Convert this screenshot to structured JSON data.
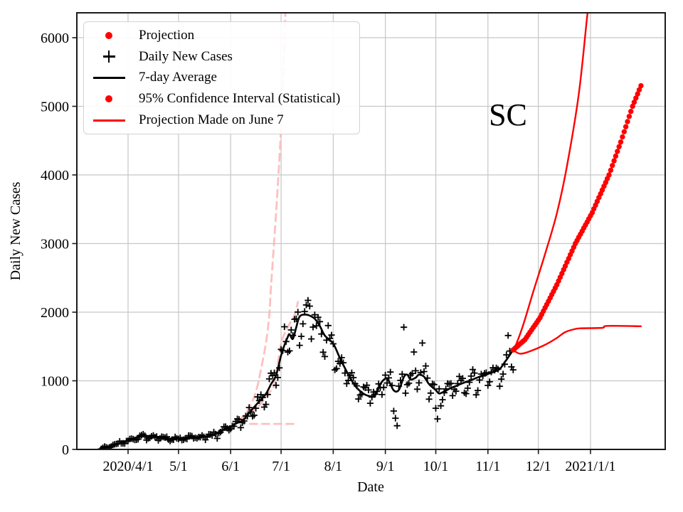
{
  "figure": {
    "annotation": "SC",
    "x_axis_label": "Date",
    "y_axis_label": "Daily New Cases"
  },
  "legend": {
    "items": [
      {
        "label": "Projection",
        "marker": "dot",
        "color": "#ff0000"
      },
      {
        "label": "Daily New Cases",
        "marker": "plus",
        "color": "#000000"
      },
      {
        "label": "7-day Average",
        "marker": "line",
        "color": "#000000"
      },
      {
        "label": "95% Confidence Interval (Statistical)",
        "marker": "dot",
        "color": "#ff0000"
      },
      {
        "label": "Projection Made on June 7",
        "marker": "line",
        "color": "#ff0000"
      }
    ]
  },
  "colors": {
    "red": "#ff0000",
    "black": "#000000",
    "faded_old_projection": "#ffb4b4",
    "grid": "#c6c6c6",
    "spine": "#1a1a1a"
  },
  "chart_data": {
    "type": "line",
    "title": "SC",
    "xlabel": "Date",
    "ylabel": "Daily New Cases",
    "ylim": [
      0,
      6360
    ],
    "grid": true,
    "legend_position": "upper left",
    "x_ticks": [
      {
        "label": "2020/4/1",
        "date": "2020-04-01"
      },
      {
        "label": "5/1",
        "date": "2020-05-01"
      },
      {
        "label": "6/1",
        "date": "2020-06-01"
      },
      {
        "label": "7/1",
        "date": "2020-07-01"
      },
      {
        "label": "8/1",
        "date": "2020-08-01"
      },
      {
        "label": "9/1",
        "date": "2020-09-01"
      },
      {
        "label": "10/1",
        "date": "2020-10-01"
      },
      {
        "label": "11/1",
        "date": "2020-11-01"
      },
      {
        "label": "12/1",
        "date": "2020-12-01"
      },
      {
        "label": "2021/1/1",
        "date": "2021-01-01"
      }
    ],
    "y_ticks": [
      0,
      1000,
      2000,
      3000,
      4000,
      5000,
      6000
    ],
    "series": [
      {
        "name": "7-day Average",
        "type": "line",
        "color": "#000000",
        "width": 2.6,
        "points": [
          [
            "2020-03-17",
            15
          ],
          [
            "2020-03-20",
            35
          ],
          [
            "2020-03-24",
            60
          ],
          [
            "2020-03-28",
            95
          ],
          [
            "2020-04-01",
            130
          ],
          [
            "2020-04-05",
            165
          ],
          [
            "2020-04-09",
            190
          ],
          [
            "2020-04-13",
            195
          ],
          [
            "2020-04-17",
            185
          ],
          [
            "2020-04-21",
            165
          ],
          [
            "2020-04-25",
            158
          ],
          [
            "2020-05-01",
            160
          ],
          [
            "2020-05-05",
            170
          ],
          [
            "2020-05-09",
            175
          ],
          [
            "2020-05-13",
            180
          ],
          [
            "2020-05-17",
            190
          ],
          [
            "2020-05-21",
            210
          ],
          [
            "2020-05-25",
            250
          ],
          [
            "2020-05-28",
            290
          ],
          [
            "2020-06-01",
            330
          ],
          [
            "2020-06-04",
            375
          ],
          [
            "2020-06-08",
            420
          ],
          [
            "2020-06-11",
            500
          ],
          [
            "2020-06-14",
            590
          ],
          [
            "2020-06-18",
            700
          ],
          [
            "2020-06-22",
            810
          ],
          [
            "2020-06-25",
            950
          ],
          [
            "2020-06-28",
            1080
          ],
          [
            "2020-07-01",
            1370
          ],
          [
            "2020-07-03",
            1520
          ],
          [
            "2020-07-05",
            1640
          ],
          [
            "2020-07-06",
            1680
          ],
          [
            "2020-07-08",
            1610
          ],
          [
            "2020-07-10",
            1780
          ],
          [
            "2020-07-12",
            1935
          ],
          [
            "2020-07-15",
            1965
          ],
          [
            "2020-07-18",
            1950
          ],
          [
            "2020-07-21",
            1905
          ],
          [
            "2020-07-24",
            1800
          ],
          [
            "2020-07-27",
            1660
          ],
          [
            "2020-08-01",
            1540
          ],
          [
            "2020-08-05",
            1330
          ],
          [
            "2020-08-10",
            1090
          ],
          [
            "2020-08-14",
            930
          ],
          [
            "2020-08-18",
            830
          ],
          [
            "2020-08-22",
            780
          ],
          [
            "2020-08-26",
            790
          ],
          [
            "2020-08-29",
            950
          ],
          [
            "2020-09-01",
            1030
          ],
          [
            "2020-09-03",
            1000
          ],
          [
            "2020-09-06",
            860
          ],
          [
            "2020-09-09",
            865
          ],
          [
            "2020-09-12",
            1055
          ],
          [
            "2020-09-14",
            1090
          ],
          [
            "2020-09-16",
            1020
          ],
          [
            "2020-09-19",
            1045
          ],
          [
            "2020-09-21",
            1090
          ],
          [
            "2020-09-24",
            1060
          ],
          [
            "2020-09-27",
            950
          ],
          [
            "2020-10-01",
            865
          ],
          [
            "2020-10-03",
            815
          ],
          [
            "2020-10-06",
            845
          ],
          [
            "2020-10-10",
            895
          ],
          [
            "2020-10-14",
            935
          ],
          [
            "2020-10-18",
            975
          ],
          [
            "2020-10-22",
            1010
          ],
          [
            "2020-10-26",
            1050
          ],
          [
            "2020-11-01",
            1100
          ],
          [
            "2020-11-05",
            1135
          ],
          [
            "2020-11-08",
            1170
          ],
          [
            "2020-11-11",
            1270
          ],
          [
            "2020-11-13",
            1340
          ],
          [
            "2020-11-16",
            1450
          ]
        ]
      },
      {
        "name": "Daily New Cases",
        "type": "scatter-plus",
        "color": "#000000",
        "start": "2020-03-16",
        "end": "2020-11-16",
        "seed": 20200607,
        "rel_noise": 0.09,
        "abs_noise": 20,
        "weekday_factors": [
          0.8,
          0.88,
          0.97,
          1.03,
          1.08,
          1.1,
          1.02
        ],
        "outliers": [
          [
            "2020-09-12",
            1780
          ],
          [
            "2020-09-23",
            1550
          ],
          [
            "2020-09-18",
            1420
          ],
          [
            "2020-09-06",
            560
          ],
          [
            "2020-09-07",
            455
          ],
          [
            "2020-09-08",
            345
          ],
          [
            "2020-10-01",
            600
          ],
          [
            "2020-10-02",
            445
          ],
          [
            "2020-11-13",
            1660
          ],
          [
            "2020-11-16",
            1160
          ]
        ]
      },
      {
        "name": "Projection",
        "type": "dots",
        "color": "#ff0000",
        "radius": 3.7,
        "points": [
          [
            "2020-11-16",
            1450
          ],
          [
            "2020-11-23",
            1600
          ],
          [
            "2020-12-02",
            1920
          ],
          [
            "2020-12-12",
            2400
          ],
          [
            "2020-12-23",
            3000
          ],
          [
            "2021-01-02",
            3450
          ],
          [
            "2021-01-12",
            4000
          ],
          [
            "2021-01-19",
            4480
          ],
          [
            "2021-01-26",
            5000
          ],
          [
            "2021-01-31",
            5300
          ]
        ]
      },
      {
        "name": "95% Confidence Interval Upper",
        "type": "line",
        "color": "#ff0000",
        "width": 2.4,
        "points": [
          [
            "2020-11-16",
            1450
          ],
          [
            "2020-11-18",
            1545
          ],
          [
            "2020-11-22",
            1815
          ],
          [
            "2020-11-28",
            2300
          ],
          [
            "2020-12-05",
            2850
          ],
          [
            "2020-12-12",
            3440
          ],
          [
            "2020-12-18",
            4130
          ],
          [
            "2020-12-25",
            5170
          ],
          [
            "2020-12-30",
            6310
          ],
          [
            "2021-01-01",
            6700
          ]
        ]
      },
      {
        "name": "95% Confidence Interval Lower",
        "type": "line",
        "color": "#ff0000",
        "width": 2.4,
        "points": [
          [
            "2020-11-16",
            1450
          ],
          [
            "2020-11-20",
            1395
          ],
          [
            "2020-11-26",
            1430
          ],
          [
            "2020-12-05",
            1525
          ],
          [
            "2020-12-12",
            1625
          ],
          [
            "2020-12-17",
            1710
          ],
          [
            "2020-12-23",
            1755
          ],
          [
            "2020-12-26",
            1765
          ],
          [
            "2021-01-08",
            1772
          ],
          [
            "2021-01-11",
            1800
          ],
          [
            "2021-01-31",
            1795
          ]
        ]
      },
      {
        "name": "Projection Made on June 7 (upper bound)",
        "type": "dashed",
        "color": "#ffb4b4",
        "width": 2.8,
        "points": [
          [
            "2020-06-06",
            430
          ],
          [
            "2020-06-10",
            520
          ],
          [
            "2020-06-12",
            620
          ],
          [
            "2020-06-14",
            700
          ],
          [
            "2020-06-17",
            930
          ],
          [
            "2020-06-19",
            1160
          ],
          [
            "2020-06-22",
            1550
          ],
          [
            "2020-06-24",
            1960
          ],
          [
            "2020-06-25",
            2370
          ],
          [
            "2020-06-28",
            3440
          ],
          [
            "2020-07-01",
            4700
          ],
          [
            "2020-07-03",
            5950
          ],
          [
            "2020-07-04",
            6700
          ]
        ]
      },
      {
        "name": "Projection Made on June 7 (central)",
        "type": "dashed",
        "color": "#ffb4b4",
        "width": 2.8,
        "points": [
          [
            "2020-06-06",
            430
          ],
          [
            "2020-06-12",
            520
          ],
          [
            "2020-06-18",
            640
          ],
          [
            "2020-06-24",
            830
          ],
          [
            "2020-06-27",
            950
          ],
          [
            "2020-07-01",
            1540
          ],
          [
            "2020-07-05",
            1780
          ],
          [
            "2020-07-09",
            1960
          ],
          [
            "2020-07-11",
            2150
          ]
        ]
      },
      {
        "name": "Projection Made on June 7 (lower bound)",
        "type": "dashed",
        "color": "#ffb4b4",
        "width": 2.8,
        "points": [
          [
            "2020-06-06",
            430
          ],
          [
            "2020-06-09",
            380
          ],
          [
            "2020-06-14",
            372
          ],
          [
            "2020-07-09",
            372
          ]
        ]
      }
    ]
  }
}
